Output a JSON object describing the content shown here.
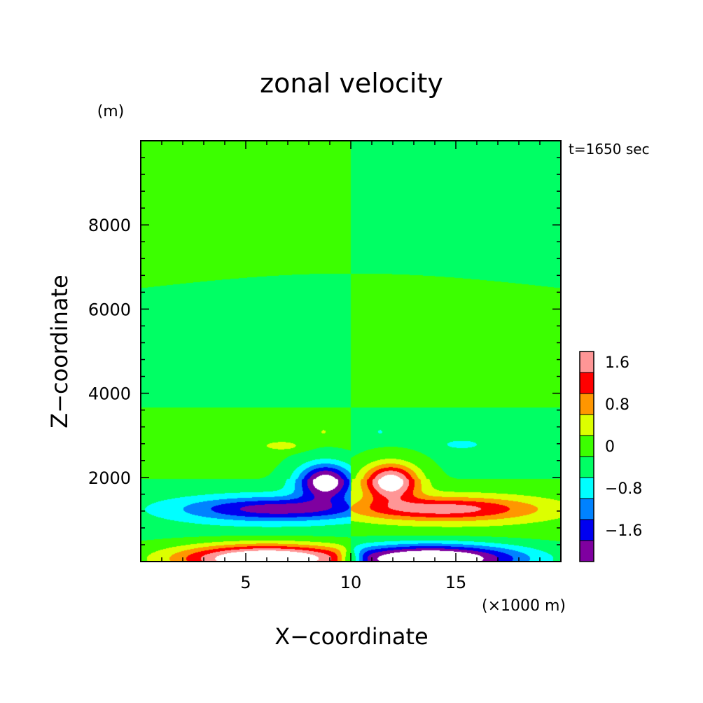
{
  "chart_data": {
    "type": "heatmap",
    "title": "zonal velocity",
    "xlabel": "X−coordinate",
    "ylabel": "Z−coordinate",
    "x_unit": "(×1000 m)",
    "y_unit": "(m)",
    "time_label": "t=1650 sec",
    "xlim": [
      0,
      20000
    ],
    "ylim": [
      0,
      10000
    ],
    "x_ticks": [
      {
        "value": 5000,
        "label": "5"
      },
      {
        "value": 10000,
        "label": "10"
      },
      {
        "value": 15000,
        "label": "15"
      }
    ],
    "y_ticks": [
      {
        "value": 2000,
        "label": "2000"
      },
      {
        "value": 4000,
        "label": "4000"
      },
      {
        "value": 6000,
        "label": "6000"
      },
      {
        "value": 8000,
        "label": "8000"
      }
    ],
    "colorbar": {
      "levels": [
        -2.0,
        -1.6,
        -1.2,
        -0.8,
        -0.4,
        0,
        0.4,
        0.8,
        1.2,
        1.6,
        2.0
      ],
      "colors": [
        "#7f00a0",
        "#0000f0",
        "#0082ff",
        "#00ffff",
        "#00ff64",
        "#3cff00",
        "#dcff00",
        "#ff9600",
        "#ff0000",
        "#ff9696"
      ],
      "tick_labels": [
        {
          "value": -1.6,
          "label": "−1.6"
        },
        {
          "value": -0.8,
          "label": "−0.8"
        },
        {
          "value": 0,
          "label": "0"
        },
        {
          "value": 0.8,
          "label": "0.8"
        },
        {
          "value": 1.6,
          "label": "1.6"
        }
      ]
    },
    "features": [
      {
        "x": 8800,
        "z": 1800,
        "value": -2.2
      },
      {
        "x": 12000,
        "z": 2000,
        "value": 2.2
      },
      {
        "x": 6000,
        "z": 1200,
        "value": -1.2
      },
      {
        "x": 15500,
        "z": 1200,
        "value": 1.2
      },
      {
        "x": 6000,
        "z": 250,
        "value": 2.4
      },
      {
        "x": 13500,
        "z": 300,
        "value": -2.4
      },
      {
        "x": 10000,
        "z": 5000,
        "value": 0.05
      },
      {
        "x": 6500,
        "z": 2800,
        "value": 0.6
      },
      {
        "x": 15500,
        "z": 2800,
        "value": -0.6
      }
    ]
  }
}
